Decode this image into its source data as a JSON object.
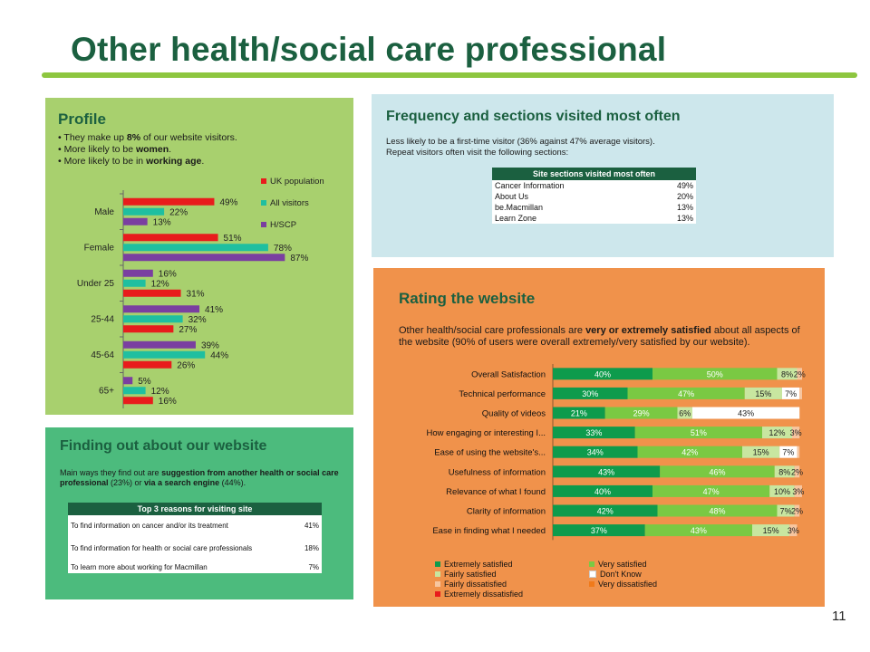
{
  "title": "Other health/social care professional",
  "page_number": "11",
  "profile": {
    "heading": "Profile",
    "bullet1_pre": "• They make up ",
    "bullet1_bold": "8%",
    "bullet1_post": " of our website visitors.",
    "bullet2_pre": "• More likely to be ",
    "bullet2_bold": "women",
    "bullet2_post": ".",
    "bullet3_pre": "• More likely to be in ",
    "bullet3_bold": "working age",
    "bullet3_post": "."
  },
  "finding": {
    "heading": "Finding out about our website",
    "text_pre": "Main ways they find out are ",
    "text_bold1": "suggestion from another health or social care professional",
    "text_mid": " (23%) or ",
    "text_bold2": "via a search engine",
    "text_post": " (44%).",
    "table_header": "Top 3 reasons for visiting site",
    "rows": [
      {
        "label": "To find information on cancer and/or its treatment",
        "value": "41%"
      },
      {
        "label": "To find information for health or social care professionals",
        "value": "18%"
      },
      {
        "label": "To learn more about working for Macmillan",
        "value": "7%"
      }
    ]
  },
  "frequency": {
    "heading": "Frequency and sections visited most often",
    "text1": "Less likely to be a first-time visitor (36% against 47% average visitors).",
    "text2": "Repeat visitors often visit the following sections:",
    "table_header": "Site sections visited most often",
    "rows": [
      {
        "label": "Cancer Information",
        "value": "49%"
      },
      {
        "label": "About Us",
        "value": "20%"
      },
      {
        "label": "be.Macmillan",
        "value": "13%"
      },
      {
        "label": "Learn Zone",
        "value": "13%"
      }
    ]
  },
  "rating": {
    "heading": "Rating the website",
    "text_pre": "Other health/social care professionals are ",
    "text_bold": "very or extremely satisfied",
    "text_post": " about all aspects of the website (90% of users were overall extremely/very satisfied by our website)."
  },
  "chart_data": [
    {
      "type": "bar",
      "orientation": "horizontal",
      "categories": [
        "Male",
        "Female",
        "Under 25",
        "25-44",
        "45-64",
        "65+"
      ],
      "series": [
        {
          "name": "UK population",
          "color": "#e81c1c",
          "values": [
            49,
            51,
            31,
            27,
            26,
            16
          ]
        },
        {
          "name": "All visitors",
          "color": "#1fbfa0",
          "values": [
            22,
            78,
            12,
            32,
            44,
            12
          ]
        },
        {
          "name": "H/SCP",
          "color": "#7a3fa0",
          "values": [
            13,
            87,
            16,
            41,
            39,
            5
          ]
        }
      ],
      "series_order_by_category": [
        [
          "UK population",
          "All visitors",
          "H/SCP"
        ],
        [
          "UK population",
          "All visitors",
          "H/SCP"
        ],
        [
          "H/SCP",
          "All visitors",
          "UK population"
        ],
        [
          "H/SCP",
          "All visitors",
          "UK population"
        ],
        [
          "H/SCP",
          "All visitors",
          "UK population"
        ],
        [
          "H/SCP",
          "All visitors",
          "UK population"
        ]
      ],
      "xlim": [
        0,
        100
      ],
      "value_suffix": "%",
      "legend_position": "top-right"
    },
    {
      "type": "bar",
      "orientation": "horizontal",
      "stacked": true,
      "categories": [
        "Overall Satisfaction",
        "Technical performance",
        "Quality of videos",
        "How engaging or interesting I...",
        "Ease of using the website's...",
        "Usefulness of information",
        "Relevance of what I found",
        "Clarity of information",
        "Ease in finding what I needed"
      ],
      "series": [
        {
          "name": "Extremely satisfied",
          "color": "#0e9b4c",
          "values": [
            40,
            30,
            21,
            33,
            34,
            43,
            40,
            42,
            37
          ]
        },
        {
          "name": "Very satisfied",
          "color": "#7ac943",
          "values": [
            50,
            47,
            29,
            51,
            42,
            46,
            47,
            48,
            43
          ]
        },
        {
          "name": "Fairly satisfied",
          "color": "#c8e6a0",
          "values": [
            8,
            15,
            6,
            12,
            15,
            8,
            10,
            7,
            15
          ]
        },
        {
          "name": "Don't Know",
          "color": "#ffffff",
          "values": [
            0,
            7,
            43,
            0,
            7,
            0,
            0,
            0,
            0
          ]
        },
        {
          "name": "Fairly dissatisfied",
          "color": "#f7c6a0",
          "values": [
            2,
            1,
            0,
            3,
            1,
            2,
            3,
            2,
            3
          ]
        },
        {
          "name": "Very dissatisfied",
          "color": "#f07a1a",
          "values": [
            0,
            0,
            0,
            0,
            0,
            0,
            0,
            0,
            0
          ]
        },
        {
          "name": "Extremely dissatisfied",
          "color": "#e81c1c",
          "values": [
            0,
            0,
            0,
            0,
            0,
            0,
            0,
            0,
            0
          ]
        }
      ],
      "xlim": [
        0,
        100
      ],
      "value_suffix": "%",
      "legend_position": "bottom"
    }
  ]
}
